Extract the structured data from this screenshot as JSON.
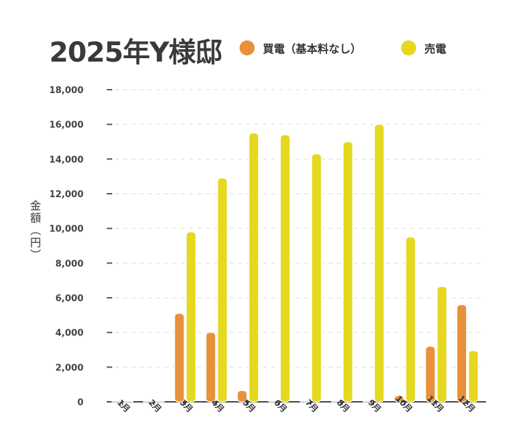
{
  "chart_data": {
    "type": "bar",
    "title": "2025年Y様邸",
    "ylabel": "金額（円）",
    "categories": [
      "1月",
      "2月",
      "3月",
      "4月",
      "5月",
      "6月",
      "7月",
      "8月",
      "9月",
      "10月",
      "11月",
      "12月"
    ],
    "series": [
      {
        "name": "買電（基本料なし）",
        "color": "#e8903a",
        "values": [
          0,
          0,
          5100,
          4000,
          650,
          0,
          0,
          0,
          0,
          350,
          3200,
          5600
        ]
      },
      {
        "name": "売電",
        "color": "#e6d81e",
        "values": [
          0,
          0,
          9800,
          12900,
          15500,
          15400,
          14300,
          15000,
          16000,
          9500,
          6650,
          2950
        ]
      }
    ],
    "ylim": [
      0,
      18000
    ],
    "yticks": [
      "0",
      "2,000",
      "4,000",
      "6,000",
      "8,000",
      "10,000",
      "12,000",
      "14,000",
      "16,000",
      "18,000"
    ],
    "ytick_values": [
      0,
      2000,
      4000,
      6000,
      8000,
      10000,
      12000,
      14000,
      16000,
      18000
    ],
    "grid": true,
    "legend_position": "top"
  }
}
